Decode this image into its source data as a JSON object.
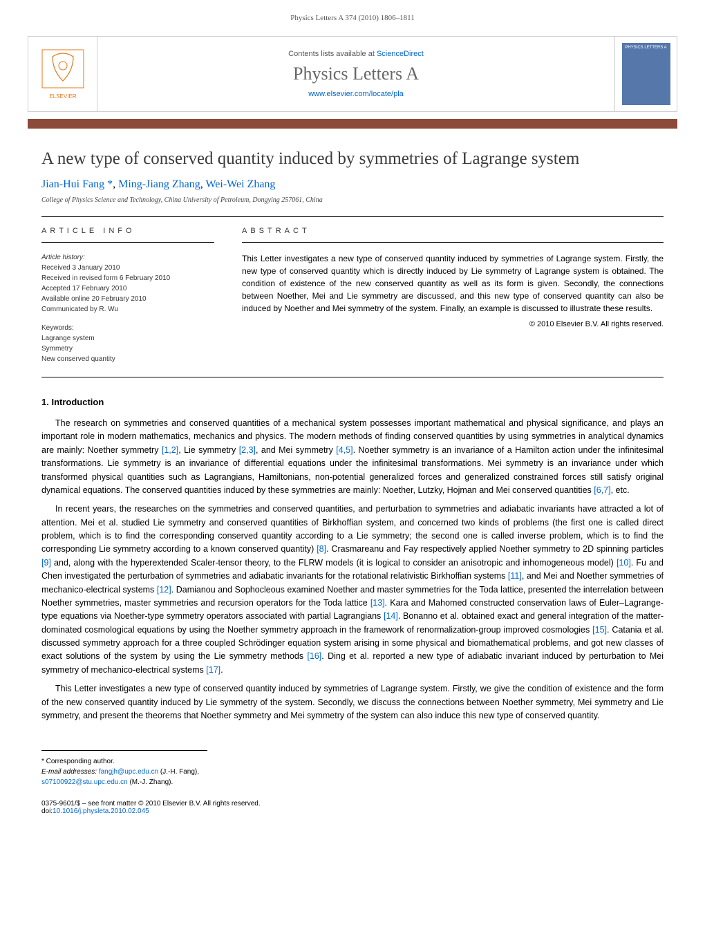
{
  "page_header": "Physics Letters A 374 (2010) 1806–1811",
  "contents_bar": {
    "contents_text_prefix": "Contents lists available at ",
    "contents_link": "ScienceDirect",
    "journal_name": "Physics Letters A",
    "journal_url": "www.elsevier.com/locate/pla",
    "cover_label": "PHYSICS LETTERS A"
  },
  "article": {
    "title": "A new type of conserved quantity induced by symmetries of Lagrange system",
    "authors": [
      {
        "name": "Jian-Hui Fang",
        "corresponding": true
      },
      {
        "name": "Ming-Jiang Zhang",
        "corresponding": false
      },
      {
        "name": "Wei-Wei Zhang",
        "corresponding": false
      }
    ],
    "affiliation": "College of Physics Science and Technology, China University of Petroleum, Dongying 257061, China"
  },
  "info": {
    "article_info_label": "ARTICLE INFO",
    "abstract_label": "ABSTRACT",
    "history_label": "Article history:",
    "history": [
      "Received 3 January 2010",
      "Received in revised form 6 February 2010",
      "Accepted 17 February 2010",
      "Available online 20 February 2010",
      "Communicated by R. Wu"
    ],
    "keywords_label": "Keywords:",
    "keywords": [
      "Lagrange system",
      "Symmetry",
      "New conserved quantity"
    ],
    "abstract": "This Letter investigates a new type of conserved quantity induced by symmetries of Lagrange system. Firstly, the new type of conserved quantity which is directly induced by Lie symmetry of Lagrange system is obtained. The condition of existence of the new conserved quantity as well as its form is given. Secondly, the connections between Noether, Mei and Lie symmetry are discussed, and this new type of conserved quantity can also be induced by Noether and Mei symmetry of the system. Finally, an example is discussed to illustrate these results.",
    "copyright": "© 2010 Elsevier B.V. All rights reserved."
  },
  "sections": {
    "s1_heading": "1. Introduction",
    "p1": "The research on symmetries and conserved quantities of a mechanical system possesses important mathematical and physical significance, and plays an important role in modern mathematics, mechanics and physics. The modern methods of finding conserved quantities by using symmetries in analytical dynamics are mainly: Noether symmetry [1,2], Lie symmetry [2,3], and Mei symmetry [4,5]. Noether symmetry is an invariance of a Hamilton action under the infinitesimal transformations. Lie symmetry is an invariance of differential equations under the infinitesimal transformations. Mei symmetry is an invariance under which transformed physical quantities such as Lagrangians, Hamiltonians, non-potential generalized forces and generalized constrained forces still satisfy original dynamical equations. The conserved quantities induced by these symmetries are mainly: Noether, Lutzky, Hojman and Mei conserved quantities [6,7], etc.",
    "p2": "In recent years, the researches on the symmetries and conserved quantities, and perturbation to symmetries and adiabatic invariants have attracted a lot of attention. Mei et al. studied Lie symmetry and conserved quantities of Birkhoffian system, and concerned two kinds of problems (the first one is called direct problem, which is to find the corresponding conserved quantity according to a Lie symmetry; the second one is called inverse problem, which is to find the corresponding Lie symmetry according to a known conserved quantity) [8]. Crasmareanu and Fay respectively applied Noether symmetry to 2D spinning particles [9] and, along with the hyperextended Scaler-tensor theory, to the FLRW models (it is logical to consider an anisotropic and inhomogeneous model) [10]. Fu and Chen investigated the perturbation of symmetries and adiabatic invariants for the rotational relativistic Birkhoffian systems [11], and Mei and Noether symmetries of mechanico-electrical systems [12]. Damianou and Sophocleous examined Noether and master symmetries for the Toda lattice, presented the interrelation between Noether symmetries, master symmetries and recursion operators for the Toda lattice [13]. Kara and Mahomed constructed conservation laws of Euler–Lagrange-type equations via Noether-type symmetry operators associated with partial Lagrangians [14]. Bonanno et al. obtained exact and general integration of the matter-dominated cosmological equations by using the Noether symmetry approach in the framework of renormalization-group improved cosmologies [15]. Catania et al. discussed symmetry approach for a three coupled Schrödinger equation system arising in some physical and biomathematical problems, and got new classes of exact solutions of the system by using the Lie symmetry methods [16]. Ding et al. reported a new type of adiabatic invariant induced by perturbation to Mei symmetry of mechanico-electrical systems [17].",
    "p3": "This Letter investigates a new type of conserved quantity induced by symmetries of Lagrange system. Firstly, we give the condition of existence and the form of the new conserved quantity induced by Lie symmetry of the system. Secondly, we discuss the connections between Noether symmetry, Mei symmetry and Lie symmetry, and present the theorems that Noether symmetry and Mei symmetry of the system can also induce this new type of conserved quantity."
  },
  "footer": {
    "corr_label": "* Corresponding author.",
    "email_label": "E-mail addresses:",
    "emails": [
      {
        "addr": "fangjh@upc.edu.cn",
        "who": "(J.-H. Fang)"
      },
      {
        "addr": "s07100922@stu.upc.edu.cn",
        "who": "(M.-J. Zhang)"
      }
    ],
    "issn_line": "0375-9601/$ – see front matter © 2010 Elsevier B.V. All rights reserved.",
    "doi_label": "doi:",
    "doi": "10.1016/j.physleta.2010.02.045"
  },
  "ref_links": {
    "r12": "[1,2]",
    "r23": "[2,3]",
    "r45": "[4,5]",
    "r67": "[6,7]",
    "r8": "[8]",
    "r9": "[9]",
    "r10": "[10]",
    "r11": "[11]",
    "r12b": "[12]",
    "r13": "[13]",
    "r14": "[14]",
    "r15": "[15]",
    "r16": "[16]",
    "r17": "[17]"
  }
}
